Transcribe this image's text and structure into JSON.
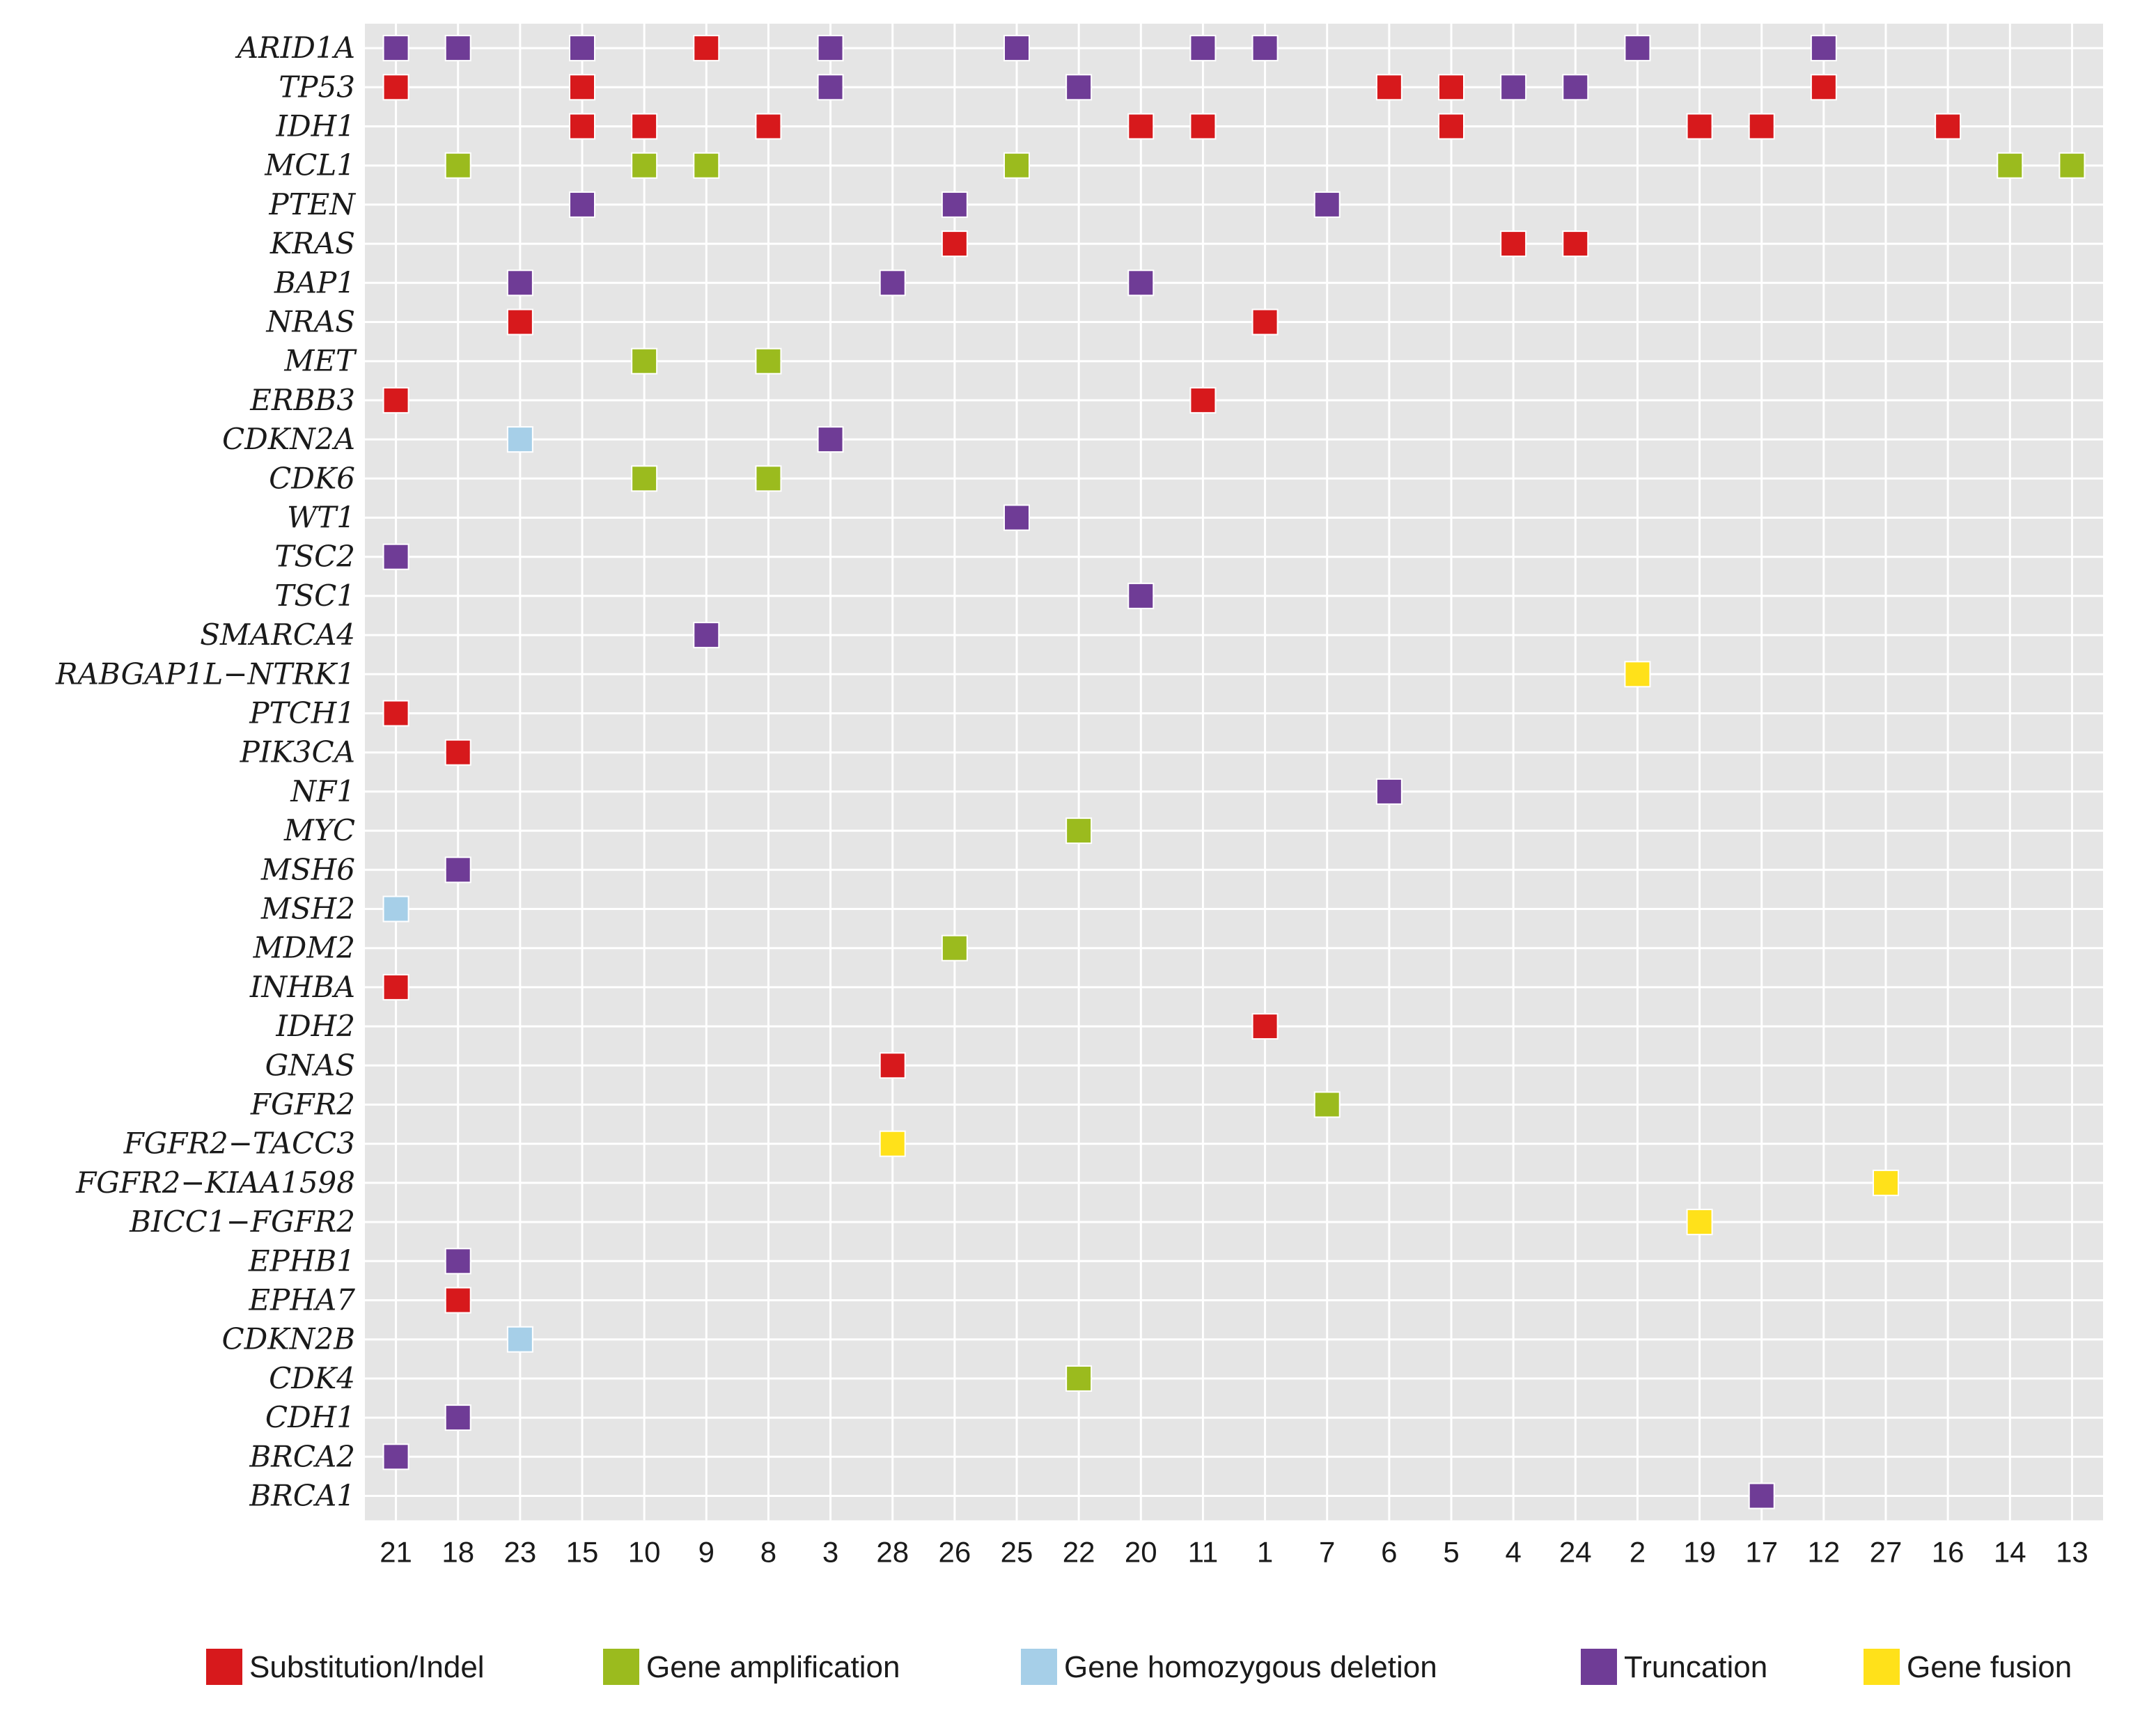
{
  "chart_data": {
    "type": "heatmap",
    "title": "",
    "xlabel": "",
    "ylabel": "",
    "grid": true,
    "legend_position": "bottom",
    "colors": {
      "panel_background": "#e5e5e5",
      "gridline": "#ffffff"
    },
    "x_categories": [
      "21",
      "18",
      "23",
      "15",
      "10",
      "9",
      "8",
      "3",
      "28",
      "26",
      "25",
      "22",
      "20",
      "11",
      "1",
      "7",
      "6",
      "5",
      "4",
      "24",
      "2",
      "19",
      "17",
      "12",
      "27",
      "16",
      "14",
      "13"
    ],
    "genes": [
      "ARID1A",
      "TP53",
      "IDH1",
      "MCL1",
      "PTEN",
      "KRAS",
      "BAP1",
      "NRAS",
      "MET",
      "ERBB3",
      "CDKN2A",
      "CDK6",
      "WT1",
      "TSC2",
      "TSC1",
      "SMARCA4",
      "RABGAP1L−NTRK1",
      "PTCH1",
      "PIK3CA",
      "NF1",
      "MYC",
      "MSH6",
      "MSH2",
      "MDM2",
      "INHBA",
      "IDH2",
      "GNAS",
      "FGFR2",
      "FGFR2−TACC3",
      "FGFR2−KIAA1598",
      "BICC1−FGFR2",
      "EPHB1",
      "EPHA7",
      "CDKN2B",
      "CDK4",
      "CDH1",
      "BRCA2",
      "BRCA1"
    ],
    "series": [
      {
        "name": "Substitution/Indel",
        "color": "#d7191c",
        "values": [
          [
            "TP53",
            "21"
          ],
          [
            "TP53",
            "15"
          ],
          [
            "TP53",
            "6"
          ],
          [
            "TP53",
            "5"
          ],
          [
            "TP53",
            "12"
          ],
          [
            "IDH1",
            "15"
          ],
          [
            "IDH1",
            "10"
          ],
          [
            "IDH1",
            "8"
          ],
          [
            "IDH1",
            "20"
          ],
          [
            "IDH1",
            "11"
          ],
          [
            "IDH1",
            "5"
          ],
          [
            "IDH1",
            "19"
          ],
          [
            "IDH1",
            "17"
          ],
          [
            "IDH1",
            "16"
          ],
          [
            "ARID1A",
            "9"
          ],
          [
            "KRAS",
            "26"
          ],
          [
            "KRAS",
            "4"
          ],
          [
            "KRAS",
            "24"
          ],
          [
            "NRAS",
            "23"
          ],
          [
            "NRAS",
            "1"
          ],
          [
            "ERBB3",
            "21"
          ],
          [
            "ERBB3",
            "11"
          ],
          [
            "PTCH1",
            "21"
          ],
          [
            "PIK3CA",
            "18"
          ],
          [
            "INHBA",
            "21"
          ],
          [
            "IDH2",
            "1"
          ],
          [
            "GNAS",
            "28"
          ],
          [
            "EPHA7",
            "18"
          ]
        ]
      },
      {
        "name": "Gene amplification",
        "color": "#9bbb1e",
        "values": [
          [
            "MCL1",
            "18"
          ],
          [
            "MCL1",
            "10"
          ],
          [
            "MCL1",
            "9"
          ],
          [
            "MCL1",
            "25"
          ],
          [
            "MCL1",
            "14"
          ],
          [
            "MCL1",
            "13"
          ],
          [
            "MET",
            "10"
          ],
          [
            "MET",
            "8"
          ],
          [
            "CDK6",
            "10"
          ],
          [
            "CDK6",
            "8"
          ],
          [
            "MYC",
            "22"
          ],
          [
            "MDM2",
            "26"
          ],
          [
            "FGFR2",
            "7"
          ],
          [
            "CDK4",
            "22"
          ]
        ]
      },
      {
        "name": "Gene homozygous deletion",
        "color": "#a6cfe8",
        "values": [
          [
            "CDKN2A",
            "23"
          ],
          [
            "MSH2",
            "21"
          ],
          [
            "CDKN2B",
            "23"
          ]
        ]
      },
      {
        "name": "Truncation",
        "color": "#6f3c96",
        "values": [
          [
            "ARID1A",
            "21"
          ],
          [
            "ARID1A",
            "18"
          ],
          [
            "ARID1A",
            "15"
          ],
          [
            "ARID1A",
            "3"
          ],
          [
            "ARID1A",
            "25"
          ],
          [
            "ARID1A",
            "11"
          ],
          [
            "ARID1A",
            "1"
          ],
          [
            "ARID1A",
            "2"
          ],
          [
            "ARID1A",
            "12"
          ],
          [
            "TP53",
            "3"
          ],
          [
            "TP53",
            "22"
          ],
          [
            "TP53",
            "4"
          ],
          [
            "TP53",
            "24"
          ],
          [
            "PTEN",
            "15"
          ],
          [
            "PTEN",
            "26"
          ],
          [
            "PTEN",
            "7"
          ],
          [
            "BAP1",
            "23"
          ],
          [
            "BAP1",
            "28"
          ],
          [
            "BAP1",
            "20"
          ],
          [
            "CDKN2A",
            "3"
          ],
          [
            "WT1",
            "25"
          ],
          [
            "TSC2",
            "21"
          ],
          [
            "TSC1",
            "20"
          ],
          [
            "SMARCA4",
            "9"
          ],
          [
            "NF1",
            "6"
          ],
          [
            "MSH6",
            "18"
          ],
          [
            "EPHB1",
            "18"
          ],
          [
            "CDH1",
            "18"
          ],
          [
            "BRCA2",
            "21"
          ],
          [
            "BRCA1",
            "17"
          ]
        ]
      },
      {
        "name": "Gene fusion",
        "color": "#ffe11a",
        "values": [
          [
            "RABGAP1L−NTRK1",
            "2"
          ],
          [
            "FGFR2−TACC3",
            "28"
          ],
          [
            "FGFR2−KIAA1598",
            "27"
          ],
          [
            "BICC1−FGFR2",
            "19"
          ]
        ]
      }
    ]
  }
}
